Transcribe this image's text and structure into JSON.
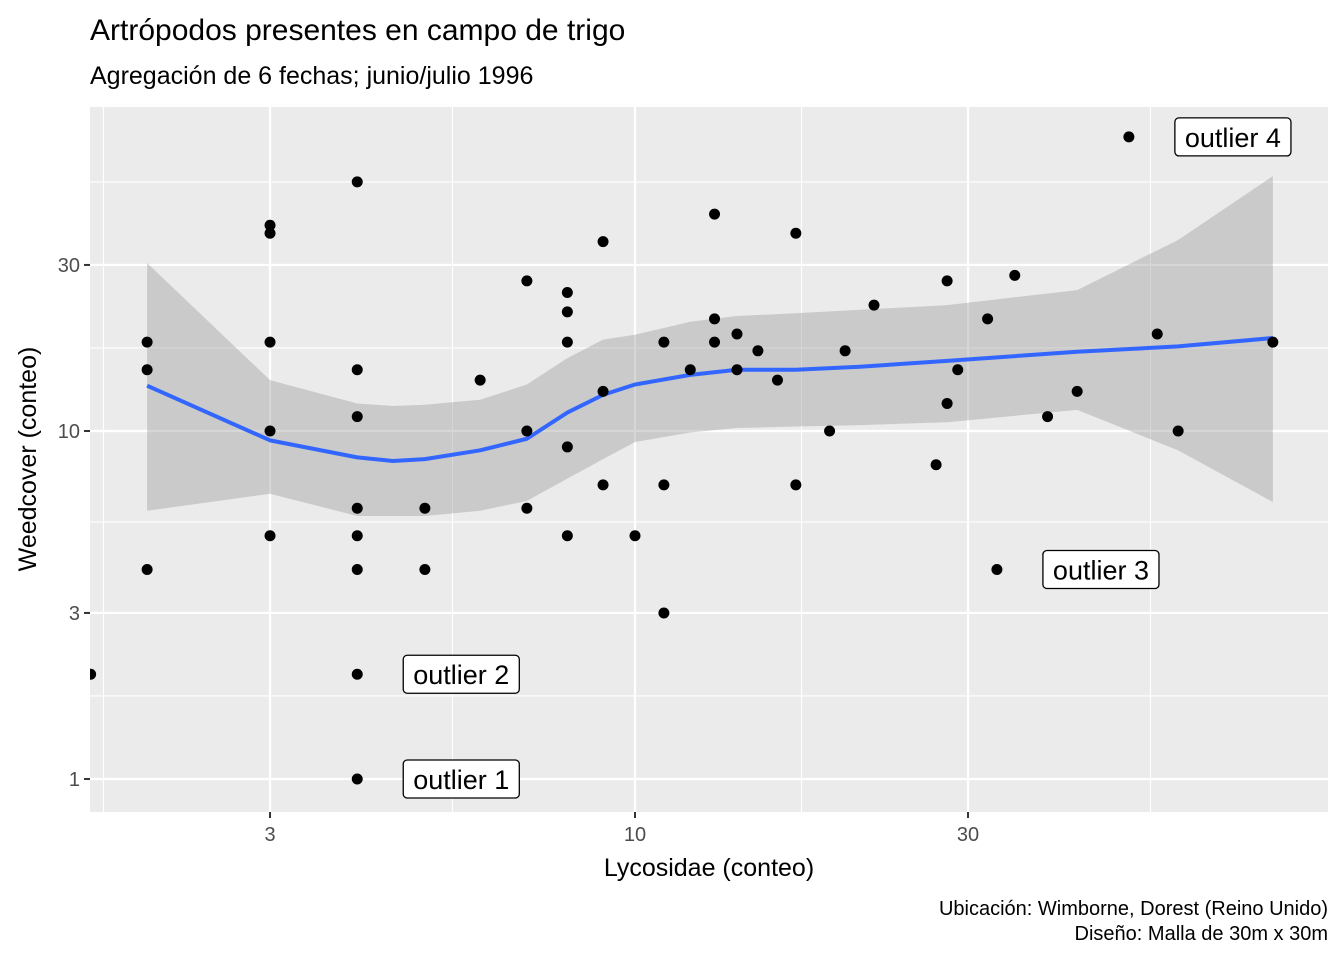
{
  "chart_data": {
    "type": "scatter",
    "title": "Artrópodos presentes en campo de trigo",
    "subtitle": "Agregación de 6 fechas; junio/julio 1996",
    "xlabel": "Lycosidae (conteo)",
    "ylabel": "Weedcover (conteo)",
    "caption_lines": [
      "Ubicación: Wimborne, Dorest (Reino Unido)",
      "Diseño: Malla de 30m x 30m"
    ],
    "x_scale": "log10",
    "y_scale": "log10",
    "x_ticks": [
      {
        "value": 3,
        "label": "3"
      },
      {
        "value": 10,
        "label": "10"
      },
      {
        "value": 30,
        "label": "30"
      }
    ],
    "y_ticks": [
      {
        "value": 1,
        "label": "1"
      },
      {
        "value": 3,
        "label": "3"
      },
      {
        "value": 10,
        "label": "10"
      },
      {
        "value": 30,
        "label": "30"
      }
    ],
    "x_minor": [
      1,
      100
    ],
    "grid": true,
    "points": [
      [
        1.66,
        2
      ],
      [
        2,
        18
      ],
      [
        2,
        15
      ],
      [
        2,
        4
      ],
      [
        3,
        39
      ],
      [
        3,
        37
      ],
      [
        3,
        18
      ],
      [
        3,
        10
      ],
      [
        3,
        5
      ],
      [
        4,
        52
      ],
      [
        4,
        15
      ],
      [
        4,
        11
      ],
      [
        4,
        6
      ],
      [
        4,
        5
      ],
      [
        4,
        4
      ],
      [
        4,
        2
      ],
      [
        4,
        1
      ],
      [
        5,
        6
      ],
      [
        5,
        4
      ],
      [
        6,
        14
      ],
      [
        7,
        27
      ],
      [
        7,
        10
      ],
      [
        7,
        6
      ],
      [
        8,
        25
      ],
      [
        8,
        22
      ],
      [
        8,
        18
      ],
      [
        8,
        9
      ],
      [
        8,
        5
      ],
      [
        9,
        35
      ],
      [
        9,
        13
      ],
      [
        9,
        7
      ],
      [
        10,
        5
      ],
      [
        11,
        18
      ],
      [
        11,
        7
      ],
      [
        11,
        3
      ],
      [
        12,
        15
      ],
      [
        13,
        42
      ],
      [
        13,
        21
      ],
      [
        13,
        18
      ],
      [
        14,
        19
      ],
      [
        14,
        15
      ],
      [
        15,
        17
      ],
      [
        16,
        14
      ],
      [
        17,
        37
      ],
      [
        17,
        7
      ],
      [
        19,
        10
      ],
      [
        20,
        17
      ],
      [
        22,
        23
      ],
      [
        27,
        8
      ],
      [
        28,
        27
      ],
      [
        28,
        12
      ],
      [
        29,
        15
      ],
      [
        32,
        21
      ],
      [
        33,
        4
      ],
      [
        35,
        28
      ],
      [
        39,
        11
      ],
      [
        43,
        13
      ],
      [
        51,
        70
      ],
      [
        56,
        19
      ],
      [
        60,
        10
      ],
      [
        82,
        18
      ]
    ],
    "smooth": {
      "method": "loess",
      "color": "#3366FF",
      "band_color": "#999999",
      "x": [
        2,
        3,
        4,
        4.5,
        5,
        6,
        7,
        8,
        9,
        10,
        12,
        14,
        17,
        21,
        28,
        43,
        60,
        82
      ],
      "fit": [
        13.5,
        9.4,
        8.4,
        8.2,
        8.3,
        8.8,
        9.5,
        11.3,
        12.7,
        13.6,
        14.5,
        15.0,
        15.0,
        15.3,
        15.9,
        16.9,
        17.5,
        18.5
      ],
      "lower": [
        5.9,
        6.6,
        5.7,
        5.7,
        5.7,
        5.9,
        6.3,
        7.3,
        8.3,
        9.3,
        9.9,
        10.2,
        10.3,
        10.4,
        10.6,
        11.5,
        8.8,
        6.25
      ],
      "upper": [
        30.4,
        14.0,
        12.0,
        11.8,
        11.9,
        12.3,
        13.6,
        16.2,
        18.3,
        18.9,
        20.6,
        21.4,
        21.8,
        22.3,
        23.0,
        25.4,
        35.4,
        54.0
      ]
    },
    "annotations": [
      {
        "text": "outlier 1",
        "x": 4,
        "y": 1
      },
      {
        "text": "outlier 2",
        "x": 4,
        "y": 2
      },
      {
        "text": "outlier 3",
        "x": 33,
        "y": 4
      },
      {
        "text": "outlier 4",
        "x": 51,
        "y": 70
      }
    ]
  }
}
